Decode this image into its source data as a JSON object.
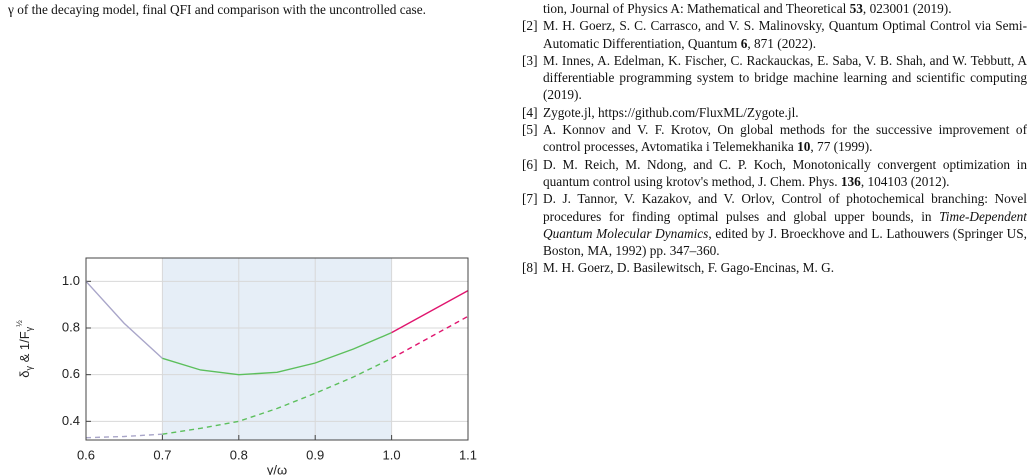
{
  "caption": "γ of the decaying model, final QFI and comparison with the uncontrolled case.",
  "chart_data": {
    "type": "line",
    "xlabel": "γ/ω",
    "ylabel": [
      "δ",
      "γ",
      " & 1/F",
      "γ",
      "½"
    ],
    "xlim": [
      0.6,
      1.1
    ],
    "ylim": [
      0.32,
      1.1
    ],
    "xticks": [
      0.6,
      0.7,
      0.8,
      0.9,
      {
        "value": 1,
        "label": "1.0"
      },
      1.1
    ],
    "yticks": [
      0.4,
      0.6,
      0.8,
      {
        "value": 1,
        "label": "1.0"
      }
    ],
    "grid": true,
    "shaded_region": [
      0.7,
      1.0
    ],
    "shaded_color": "#e6eef7",
    "series": [
      {
        "color": "#a9a6c9",
        "dashed": false,
        "x": [
          0.6,
          0.65,
          0.7
        ],
        "values": [
          1.0,
          0.82,
          0.67
        ]
      },
      {
        "color": "#5cbf5c",
        "dashed": false,
        "x": [
          0.7,
          0.75,
          0.8,
          0.85,
          0.9,
          0.95,
          1.0
        ],
        "values": [
          0.67,
          0.62,
          0.6,
          0.61,
          0.65,
          0.71,
          0.78
        ]
      },
      {
        "color": "#e0156e",
        "dashed": false,
        "x": [
          1.0,
          1.05,
          1.1
        ],
        "values": [
          0.78,
          0.87,
          0.96
        ]
      },
      {
        "color": "#a9a6c9",
        "dashed": true,
        "x": [
          0.6,
          0.65,
          0.7
        ],
        "values": [
          0.33,
          0.335,
          0.345
        ]
      },
      {
        "color": "#5cbf5c",
        "dashed": true,
        "x": [
          0.7,
          0.75,
          0.8,
          0.85,
          0.9,
          0.95,
          1.0
        ],
        "values": [
          0.345,
          0.37,
          0.4,
          0.455,
          0.52,
          0.59,
          0.67
        ]
      },
      {
        "color": "#e0156e",
        "dashed": true,
        "x": [
          1.0,
          1.05,
          1.1
        ],
        "values": [
          0.67,
          0.76,
          0.85
        ]
      }
    ]
  },
  "references": [
    {
      "runs": [
        {
          "text": "tion, Journal of Physics A: Mathematical and Theoretical "
        },
        {
          "text": "53",
          "style": "bold"
        },
        {
          "text": ", 023001 (2019)."
        }
      ]
    },
    {
      "label": "[2]",
      "runs": [
        {
          "text": "M. H. Goerz, S. C. Carrasco, and V. S. Malinovsky, Quantum Optimal Control via Semi-Automatic Differentiation, Quantum "
        },
        {
          "text": "6",
          "style": "bold"
        },
        {
          "text": ", 871 (2022)."
        }
      ]
    },
    {
      "label": "[3]",
      "runs": [
        {
          "text": "M. Innes, A. Edelman, K. Fischer, C. Rackauckas, E. Saba, V. B. Shah, and W. Tebbutt, A differentiable programming system to bridge machine learning and scientific computing (2019)."
        }
      ]
    },
    {
      "label": "[4]",
      "runs": [
        {
          "text": "Zygote.jl, https://github.com/FluxML/Zygote.jl."
        }
      ]
    },
    {
      "label": "[5]",
      "runs": [
        {
          "text": "A. Konnov and V. F. Krotov, On global methods for the successive improvement of control processes, Avtomatika i Telemekhanika "
        },
        {
          "text": "10",
          "style": "bold"
        },
        {
          "text": ", 77 (1999)."
        }
      ]
    },
    {
      "label": "[6]",
      "runs": [
        {
          "text": "D. M. Reich, M. Ndong, and C. P. Koch, Monotonically convergent optimization in quantum control using krotov's method, J. Chem. Phys. "
        },
        {
          "text": "136",
          "style": "bold"
        },
        {
          "text": ", 104103 (2012)."
        }
      ]
    },
    {
      "label": "[7]",
      "runs": [
        {
          "text": "D. J. Tannor, V. Kazakov, and V. Orlov, Control of photochemical branching: Novel procedures for finding optimal pulses and global upper bounds, in "
        },
        {
          "text": "Time-Dependent Quantum Molecular Dynamics",
          "style": "italic"
        },
        {
          "text": ", edited by J. Broeckhove and L. Lathouwers (Springer US, Boston, MA, 1992) pp. 347–360."
        }
      ]
    },
    {
      "label": "[8]",
      "runs": [
        {
          "text": "M. H. Goerz, D. Basilewitsch, F. Gago-Encinas, M. G."
        }
      ]
    }
  ]
}
